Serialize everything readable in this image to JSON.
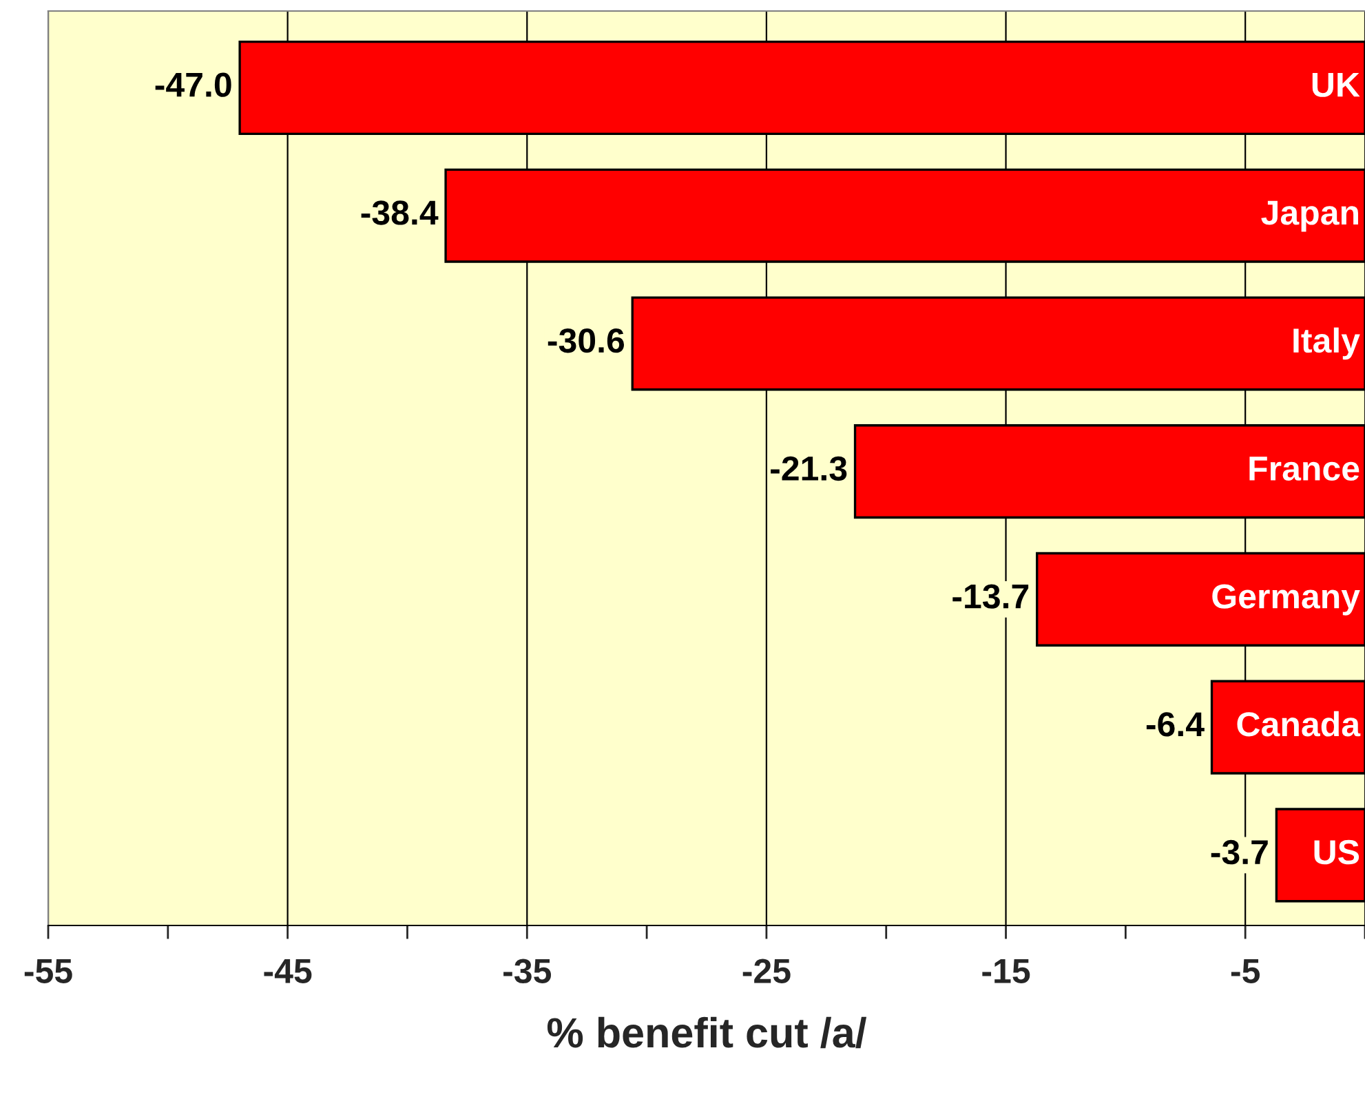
{
  "chart_data": {
    "type": "bar",
    "orientation": "horizontal",
    "xlabel": "% benefit cut /a/",
    "categories": [
      "UK",
      "Japan",
      "Italy",
      "France",
      "Germany",
      "Canada",
      "US"
    ],
    "values": [
      -47.0,
      -38.4,
      -30.6,
      -21.3,
      -13.7,
      -6.4,
      -3.7
    ],
    "value_labels": [
      "-47.0",
      "-38.4",
      "-30.6",
      "-21.3",
      "-13.7",
      "-6.4",
      "-3.7"
    ],
    "color": "#ff0000",
    "xlim": [
      -55,
      0
    ],
    "xticks": [
      -55,
      {
        "value": -50,
        "label": null
      },
      -45,
      {
        "value": -40,
        "label": null
      },
      -35,
      {
        "value": -30,
        "label": null
      },
      -25,
      {
        "value": -20,
        "label": null
      },
      -15,
      {
        "value": -10,
        "label": null
      },
      -5,
      {
        "value": 0,
        "label": null
      }
    ],
    "grid": "x",
    "tick_labels": "x",
    "legend": false
  }
}
